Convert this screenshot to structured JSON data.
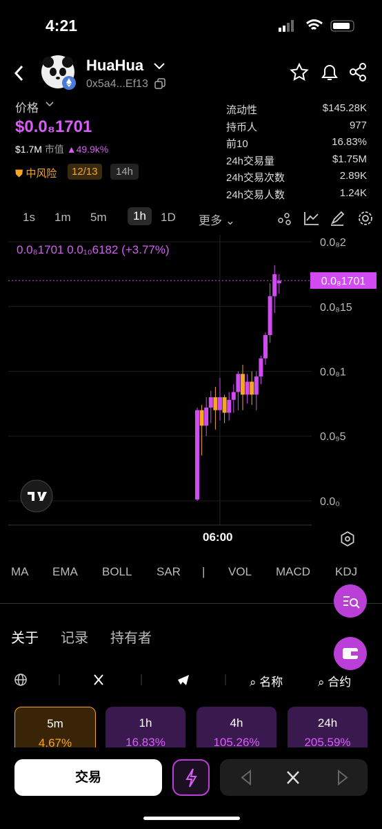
{
  "status_bar": {
    "time": "4:21"
  },
  "header": {
    "name": "HuaHua",
    "address": "0x5a4...Ef13"
  },
  "price_panel": {
    "label": "价格",
    "price": "$0.0₈1701",
    "market_cap": "$1.7M",
    "market_cap_label": "市值",
    "change": "49.9k%",
    "risk": "中风险",
    "risk_score": "12/13",
    "age": "14h"
  },
  "stats": [
    [
      "流动性",
      "$145.28K"
    ],
    [
      "持币人",
      "977"
    ],
    [
      "前10",
      "16.83%"
    ],
    [
      "24h交易量",
      "$1.75M"
    ],
    [
      "24h交易次数",
      "2.89K"
    ],
    [
      "24h交易人数",
      "1.24K"
    ]
  ],
  "timeframes": [
    "1s",
    "1m",
    "5m",
    "1h",
    "1D",
    "更多"
  ],
  "chart_data": {
    "type": "candlestick",
    "legend_text": "0.0₈1701  0.0₁₀6182 (+3.77%)",
    "up_color": "#d24bf2",
    "down_color": "#f5a623",
    "ylim": [
      -1.87e-10,
      2.027e-09
    ],
    "yticks": [
      {
        "value": 0,
        "label": "0.0₀"
      },
      {
        "value": 5e-10,
        "label": "0.0₉5"
      },
      {
        "value": 1e-09,
        "label": "0.0₈1"
      },
      {
        "value": 1.5e-09,
        "label": "0.0₈15"
      },
      {
        "value": 2e-09,
        "label": "0.0₈2"
      }
    ],
    "last_price": {
      "value": 1.701e-09,
      "label": "0.0₈1701"
    },
    "time_label": "06:00",
    "candles": [
      {
        "open": 1e-11,
        "high": 7.2e-10,
        "low": 0,
        "close": 7e-10
      },
      {
        "open": 7e-10,
        "high": 7.4e-10,
        "low": 3.5e-10,
        "close": 5.8e-10
      },
      {
        "open": 5.8e-10,
        "high": 8e-10,
        "low": 5e-10,
        "close": 7.2e-10
      },
      {
        "open": 7.2e-10,
        "high": 8.5e-10,
        "low": 6e-10,
        "close": 8e-10
      },
      {
        "open": 8e-10,
        "high": 8.8e-10,
        "low": 5.5e-10,
        "close": 7e-10
      },
      {
        "open": 7e-10,
        "high": 9.5e-10,
        "low": 6.2e-10,
        "close": 8e-10
      },
      {
        "open": 8e-10,
        "high": 8.2e-10,
        "low": 6e-10,
        "close": 6.8e-10
      },
      {
        "open": 6.8e-10,
        "high": 8.4e-10,
        "low": 6.2e-10,
        "close": 7.8e-10
      },
      {
        "open": 7.8e-10,
        "high": 9e-10,
        "low": 6.8e-10,
        "close": 8.4e-10
      },
      {
        "open": 8.4e-10,
        "high": 1e-09,
        "low": 7e-10,
        "close": 9.8e-10
      },
      {
        "open": 9.8e-10,
        "high": 1.05e-09,
        "low": 7e-10,
        "close": 8.2e-10
      },
      {
        "open": 8.2e-10,
        "high": 9.8e-10,
        "low": 7.5e-10,
        "close": 9.2e-10
      },
      {
        "open": 9.2e-10,
        "high": 1e-09,
        "low": 7.4e-10,
        "close": 8.2e-10
      },
      {
        "open": 8.2e-10,
        "high": 1e-09,
        "low": 7e-10,
        "close": 9.6e-10
      },
      {
        "open": 9.6e-10,
        "high": 1.12e-09,
        "low": 9e-10,
        "close": 1.1e-09
      },
      {
        "open": 1.1e-09,
        "high": 1.3e-09,
        "low": 1.05e-09,
        "close": 1.28e-09
      },
      {
        "open": 1.28e-09,
        "high": 1.68e-09,
        "low": 1.22e-09,
        "close": 1.58e-09
      },
      {
        "open": 1.58e-09,
        "high": 1.82e-09,
        "low": 1.45e-09,
        "close": 1.75e-09
      },
      {
        "open": 1.68e-09,
        "high": 1.75e-09,
        "low": 1.6e-09,
        "close": 1.701e-09
      }
    ]
  },
  "indicators": [
    "MA",
    "EMA",
    "BOLL",
    "SAR",
    "|",
    "VOL",
    "MACD",
    "KDJ"
  ],
  "tabs": [
    "关于",
    "记录",
    "持有者"
  ],
  "links": [
    "名称",
    "合约"
  ],
  "cards": [
    [
      "5m",
      "4.67%"
    ],
    [
      "1h",
      "16.83%"
    ],
    [
      "4h",
      "105.26%"
    ],
    [
      "24h",
      "205.59%"
    ]
  ],
  "bottom": {
    "trade": "交易"
  }
}
